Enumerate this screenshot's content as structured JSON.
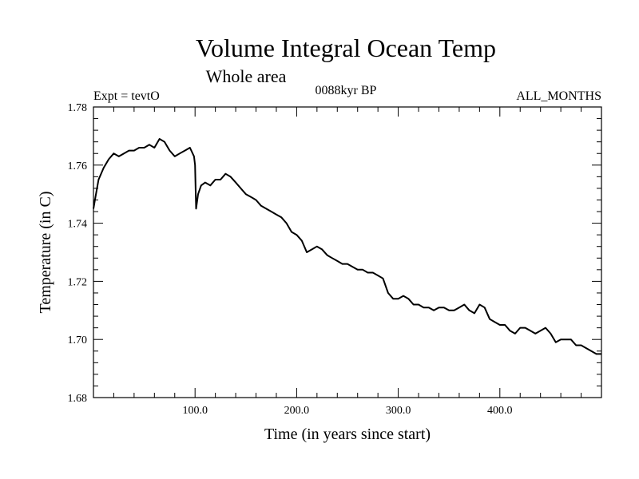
{
  "chart_data": {
    "type": "line",
    "title": "Volume Integral Ocean Temp",
    "subtitle": "Whole area",
    "annotations": {
      "left": "Expt = tevtO",
      "center": "0088kyr BP",
      "right": "ALL_MONTHS"
    },
    "xlabel": "Time (in years since start)",
    "ylabel": "Temperature (in C)",
    "xlim": [
      0,
      500
    ],
    "ylim": [
      1.68,
      1.78
    ],
    "x_ticks": [
      100,
      200,
      300,
      400
    ],
    "x_tick_labels": [
      "100.0",
      "200.0",
      "300.0",
      "400.0"
    ],
    "y_ticks": [
      1.68,
      1.7,
      1.72,
      1.74,
      1.76,
      1.78
    ],
    "y_tick_labels": [
      "1.68",
      "1.70",
      "1.72",
      "1.74",
      "1.76",
      "1.78"
    ],
    "grid": false,
    "line_color": "#000000",
    "series": [
      {
        "x": [
          0,
          2,
          5,
          10,
          15,
          20,
          25,
          30,
          35,
          40,
          45,
          50,
          55,
          60,
          65,
          70,
          75,
          80,
          85,
          90,
          95,
          99,
          100,
          101,
          103,
          106,
          110,
          115,
          120,
          125,
          130,
          135,
          140,
          145,
          150,
          155,
          160,
          165,
          170,
          175,
          180,
          185,
          190,
          195,
          200,
          205,
          210,
          215,
          220,
          225,
          230,
          235,
          240,
          245,
          250,
          255,
          260,
          265,
          270,
          275,
          280,
          285,
          290,
          295,
          300,
          305,
          310,
          315,
          320,
          325,
          330,
          335,
          340,
          345,
          350,
          355,
          360,
          365,
          370,
          375,
          380,
          385,
          390,
          395,
          400,
          405,
          410,
          415,
          420,
          425,
          430,
          435,
          440,
          445,
          450,
          455,
          460,
          465,
          470,
          475,
          480,
          485,
          490,
          495,
          500
        ],
        "y": [
          1.745,
          1.749,
          1.755,
          1.759,
          1.762,
          1.764,
          1.763,
          1.764,
          1.765,
          1.765,
          1.766,
          1.766,
          1.767,
          1.766,
          1.769,
          1.768,
          1.765,
          1.763,
          1.764,
          1.765,
          1.766,
          1.763,
          1.76,
          1.745,
          1.75,
          1.753,
          1.754,
          1.753,
          1.755,
          1.755,
          1.757,
          1.756,
          1.754,
          1.752,
          1.75,
          1.749,
          1.748,
          1.746,
          1.745,
          1.744,
          1.743,
          1.742,
          1.74,
          1.737,
          1.736,
          1.734,
          1.73,
          1.731,
          1.732,
          1.731,
          1.729,
          1.728,
          1.727,
          1.726,
          1.726,
          1.725,
          1.724,
          1.724,
          1.723,
          1.723,
          1.722,
          1.721,
          1.716,
          1.714,
          1.714,
          1.715,
          1.714,
          1.712,
          1.712,
          1.711,
          1.711,
          1.71,
          1.711,
          1.711,
          1.71,
          1.71,
          1.711,
          1.712,
          1.71,
          1.709,
          1.712,
          1.711,
          1.707,
          1.706,
          1.705,
          1.705,
          1.703,
          1.702,
          1.704,
          1.704,
          1.703,
          1.702,
          1.703,
          1.704,
          1.702,
          1.699,
          1.7,
          1.7,
          1.7,
          1.698,
          1.698,
          1.697,
          1.696,
          1.695,
          1.695
        ]
      }
    ]
  }
}
